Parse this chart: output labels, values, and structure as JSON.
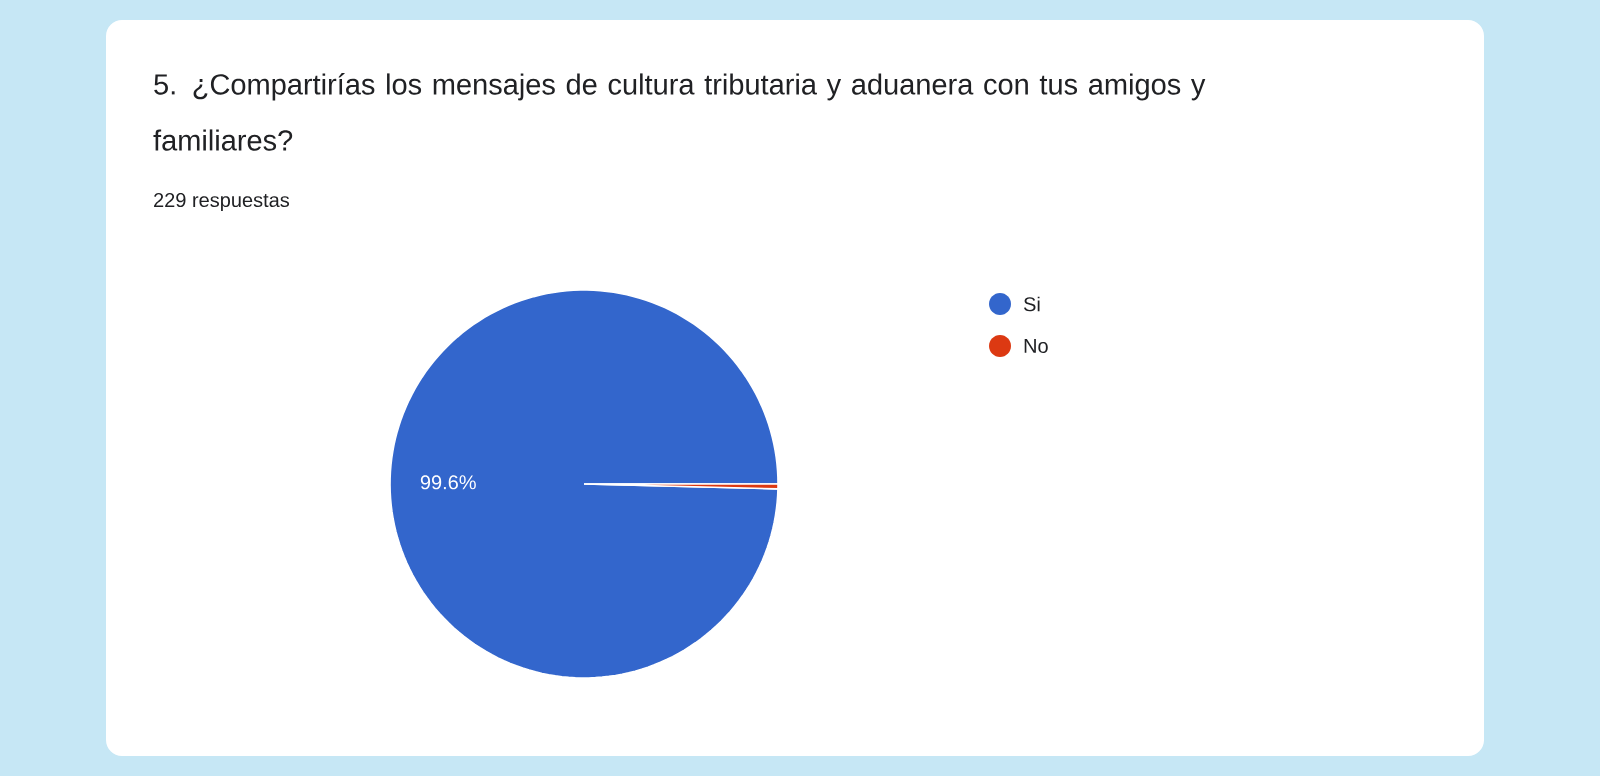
{
  "chart_data": {
    "type": "pie",
    "title": "5. ¿Compartirías los mensajes de cultura tributaria y aduanera con tus amigos y familiares?",
    "subtitle": "229 respuestas",
    "categories": [
      "Si",
      "No"
    ],
    "values": [
      99.6,
      0.4
    ],
    "colors": [
      "#3366cc",
      "#dc3912"
    ],
    "value_labels": [
      "99.6%",
      null
    ],
    "legend": "right"
  }
}
